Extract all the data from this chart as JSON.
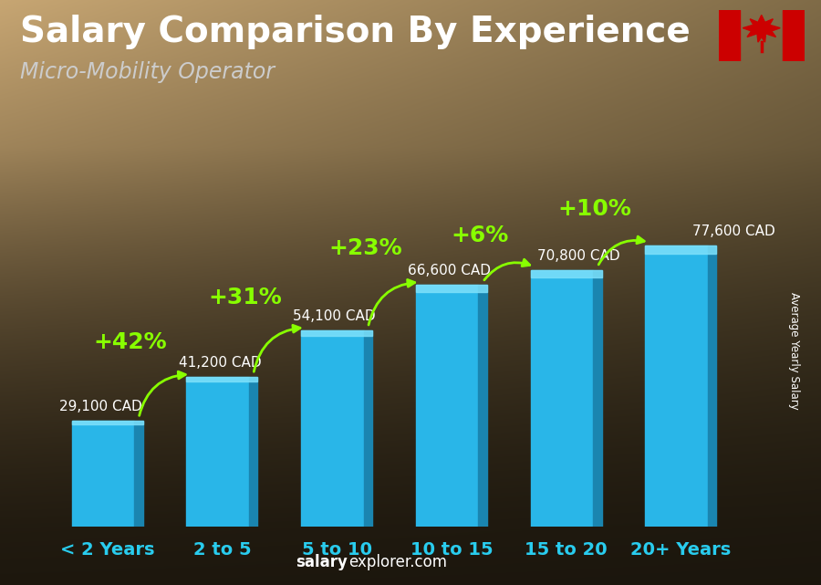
{
  "title": "Salary Comparison By Experience",
  "subtitle": "Micro-Mobility Operator",
  "ylabel": "Average Yearly Salary",
  "watermark_bold": "salary",
  "watermark_normal": "explorer.com",
  "categories": [
    "< 2 Years",
    "2 to 5",
    "5 to 10",
    "10 to 15",
    "15 to 20",
    "20+ Years"
  ],
  "values": [
    29100,
    41200,
    54100,
    66600,
    70800,
    77600
  ],
  "value_labels": [
    "29,100 CAD",
    "41,200 CAD",
    "54,100 CAD",
    "66,600 CAD",
    "70,800 CAD",
    "77,600 CAD"
  ],
  "pct_labels": [
    "+42%",
    "+31%",
    "+23%",
    "+6%",
    "+10%"
  ],
  "bar_color_main": "#29b6e8",
  "bar_color_dark": "#1a85b0",
  "bar_color_light": "#55d0f5",
  "bar_color_top": "#7de0fa",
  "text_color_white": "#ffffff",
  "text_color_cyan": "#29ccee",
  "text_color_green": "#88ff00",
  "bg_top_left": "#c8a878",
  "bg_top_right": "#7a6a50",
  "bg_bottom": "#2a1e10",
  "title_fontsize": 28,
  "subtitle_fontsize": 17,
  "value_fontsize": 11,
  "pct_fontsize": 18,
  "tick_fontsize": 14,
  "figsize": [
    9.0,
    6.41
  ],
  "dpi": 100,
  "arrow_params": [
    {
      "from": 0,
      "to": 1,
      "pct": "+42%",
      "label_xoff": -0.3,
      "label_yoff": 6500
    },
    {
      "from": 1,
      "to": 2,
      "pct": "+31%",
      "label_xoff": -0.3,
      "label_yoff": 6000
    },
    {
      "from": 2,
      "to": 3,
      "pct": "+23%",
      "label_xoff": -0.25,
      "label_yoff": 7000
    },
    {
      "from": 3,
      "to": 4,
      "pct": "+6%",
      "label_xoff": -0.25,
      "label_yoff": 6500
    },
    {
      "from": 4,
      "to": 5,
      "pct": "+10%",
      "label_xoff": -0.25,
      "label_yoff": 7000
    }
  ]
}
